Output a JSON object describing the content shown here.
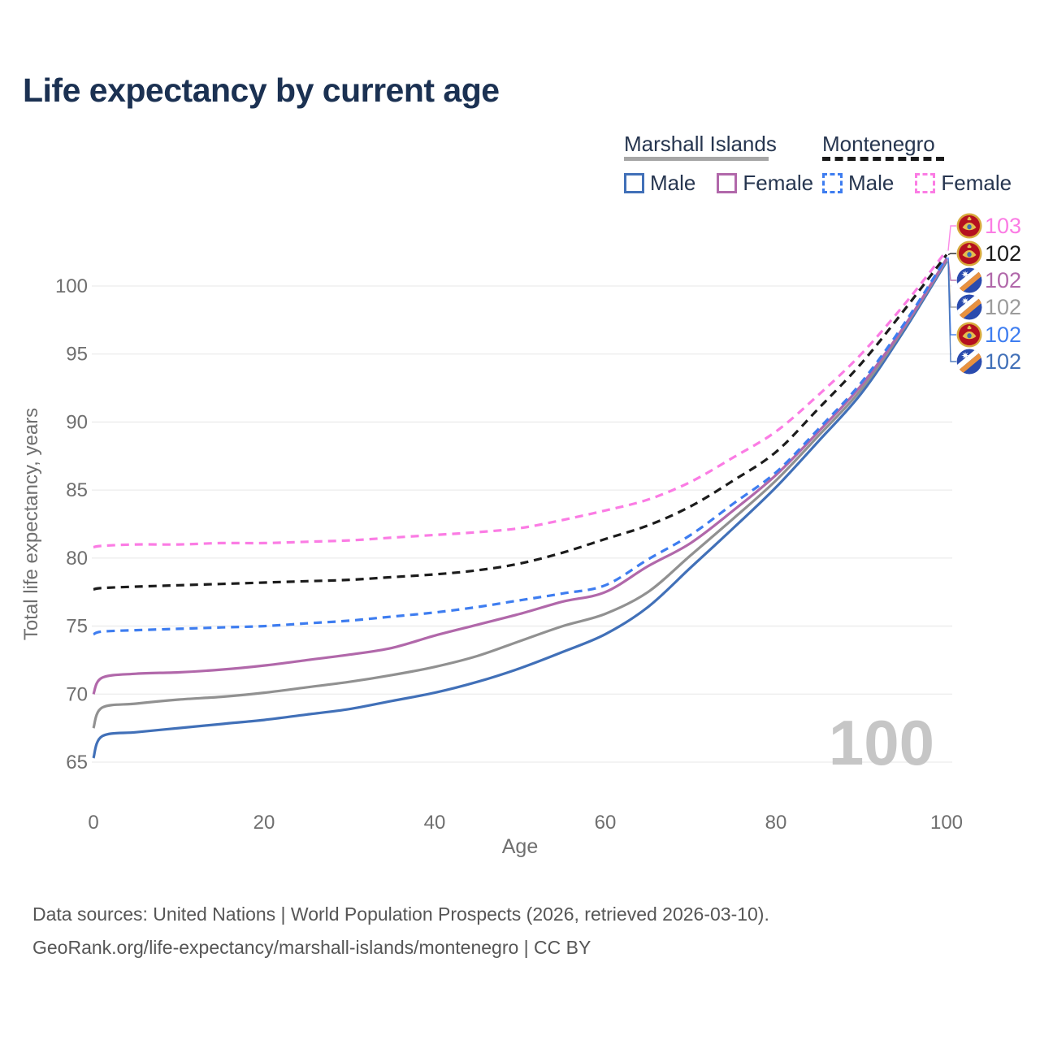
{
  "title": "Life expectancy by current age",
  "legend": {
    "groups": [
      {
        "name": "Marshall Islands",
        "underline_style": "solid",
        "underline_color": "#a6a6a6",
        "underline_width": 178,
        "items": [
          {
            "label": "Male",
            "series_id": "mi_male"
          },
          {
            "label": "Female",
            "series_id": "mi_female"
          }
        ]
      },
      {
        "name": "Montenegro",
        "underline_style": "dashed",
        "underline_color": "#1a1a1a",
        "underline_width": 150,
        "items": [
          {
            "label": "Male",
            "series_id": "me_male"
          },
          {
            "label": "Female",
            "series_id": "me_female"
          }
        ]
      }
    ]
  },
  "chart_data": {
    "type": "line",
    "title": "Life expectancy by current age",
    "xlabel": "Age",
    "ylabel": "Total life expectancy, years",
    "xlim": [
      0,
      100
    ],
    "ylim": [
      63,
      104
    ],
    "x_ticks": [
      0,
      20,
      40,
      60,
      80,
      100
    ],
    "y_ticks": [
      65,
      70,
      75,
      80,
      85,
      90,
      95,
      100
    ],
    "grid": "horizontal",
    "legend_position": "top-right",
    "watermark": "100",
    "x": [
      0,
      1,
      5,
      10,
      15,
      20,
      25,
      30,
      35,
      40,
      45,
      50,
      55,
      60,
      65,
      70,
      75,
      80,
      85,
      90,
      95,
      100
    ],
    "series": [
      {
        "id": "mi_male",
        "name": "Marshall Islands Male",
        "country": "Marshall Islands",
        "sex": "Male",
        "style": "solid",
        "color": "#4170b8",
        "label_color": "#4170b8",
        "flag": "mh",
        "end_label": "102",
        "values": [
          65.3,
          66.9,
          67.2,
          67.5,
          67.8,
          68.1,
          68.5,
          68.9,
          69.5,
          70.1,
          70.9,
          71.9,
          73.1,
          74.4,
          76.4,
          79.3,
          82.2,
          85.2,
          88.6,
          92.1,
          96.7,
          101.8
        ]
      },
      {
        "id": "mi_total",
        "name": "Marshall Islands Total",
        "country": "Marshall Islands",
        "sex": "Total",
        "style": "solid",
        "color": "#919191",
        "label_color": "#9b9b9b",
        "flag": "mh",
        "end_label": "102",
        "values": [
          67.5,
          69.0,
          69.3,
          69.6,
          69.8,
          70.1,
          70.5,
          70.9,
          71.4,
          72.0,
          72.8,
          73.9,
          75.0,
          75.9,
          77.5,
          80.2,
          82.9,
          85.7,
          89.0,
          92.4,
          96.9,
          101.9
        ]
      },
      {
        "id": "mi_female",
        "name": "Marshall Islands Female",
        "country": "Marshall Islands",
        "sex": "Female",
        "style": "solid",
        "color": "#b168aa",
        "label_color": "#b168aa",
        "flag": "mh",
        "end_label": "102",
        "values": [
          70.0,
          71.2,
          71.5,
          71.6,
          71.8,
          72.1,
          72.5,
          72.9,
          73.4,
          74.3,
          75.1,
          75.9,
          76.8,
          77.5,
          79.4,
          81.1,
          83.5,
          86.1,
          89.3,
          92.7,
          97.0,
          102.0
        ]
      },
      {
        "id": "me_male",
        "name": "Montenegro Male",
        "country": "Montenegro",
        "sex": "Male",
        "style": "dashed",
        "color": "#3e7df0",
        "label_color": "#3e7df0",
        "flag": "me",
        "end_label": "102",
        "values": [
          74.4,
          74.6,
          74.7,
          74.8,
          74.9,
          75.0,
          75.2,
          75.4,
          75.7,
          76.0,
          76.4,
          76.9,
          77.4,
          78.0,
          79.9,
          81.7,
          84.0,
          86.3,
          89.5,
          92.9,
          97.2,
          102.1
        ]
      },
      {
        "id": "me_total",
        "name": "Montenegro Total",
        "country": "Montenegro",
        "sex": "Total",
        "style": "dashed",
        "color": "#1c1c1c",
        "label_color": "#1a1a1a",
        "flag": "me",
        "end_label": "102",
        "values": [
          77.7,
          77.8,
          77.9,
          78.0,
          78.1,
          78.2,
          78.3,
          78.4,
          78.6,
          78.8,
          79.1,
          79.6,
          80.4,
          81.4,
          82.4,
          83.8,
          85.7,
          87.8,
          91.0,
          94.3,
          98.2,
          102.3
        ]
      },
      {
        "id": "me_female",
        "name": "Montenegro Female",
        "country": "Montenegro",
        "sex": "Female",
        "style": "dashed",
        "color": "#fb7ce4",
        "label_color": "#fb7ce4",
        "flag": "me",
        "end_label": "103",
        "values": [
          80.8,
          80.9,
          81.0,
          81.0,
          81.1,
          81.1,
          81.2,
          81.3,
          81.5,
          81.7,
          81.9,
          82.2,
          82.8,
          83.5,
          84.3,
          85.6,
          87.4,
          89.3,
          92.0,
          95.0,
          98.6,
          102.6
        ]
      }
    ],
    "end_label_order": [
      "me_female",
      "me_total",
      "mi_female",
      "mi_total",
      "me_male",
      "mi_male"
    ]
  },
  "footer": {
    "line1": "Data sources: United Nations | World Population Prospects (2026, retrieved 2026-03-10).",
    "line2": "GeoRank.org/life-expectancy/marshall-islands/montenegro | CC BY"
  }
}
